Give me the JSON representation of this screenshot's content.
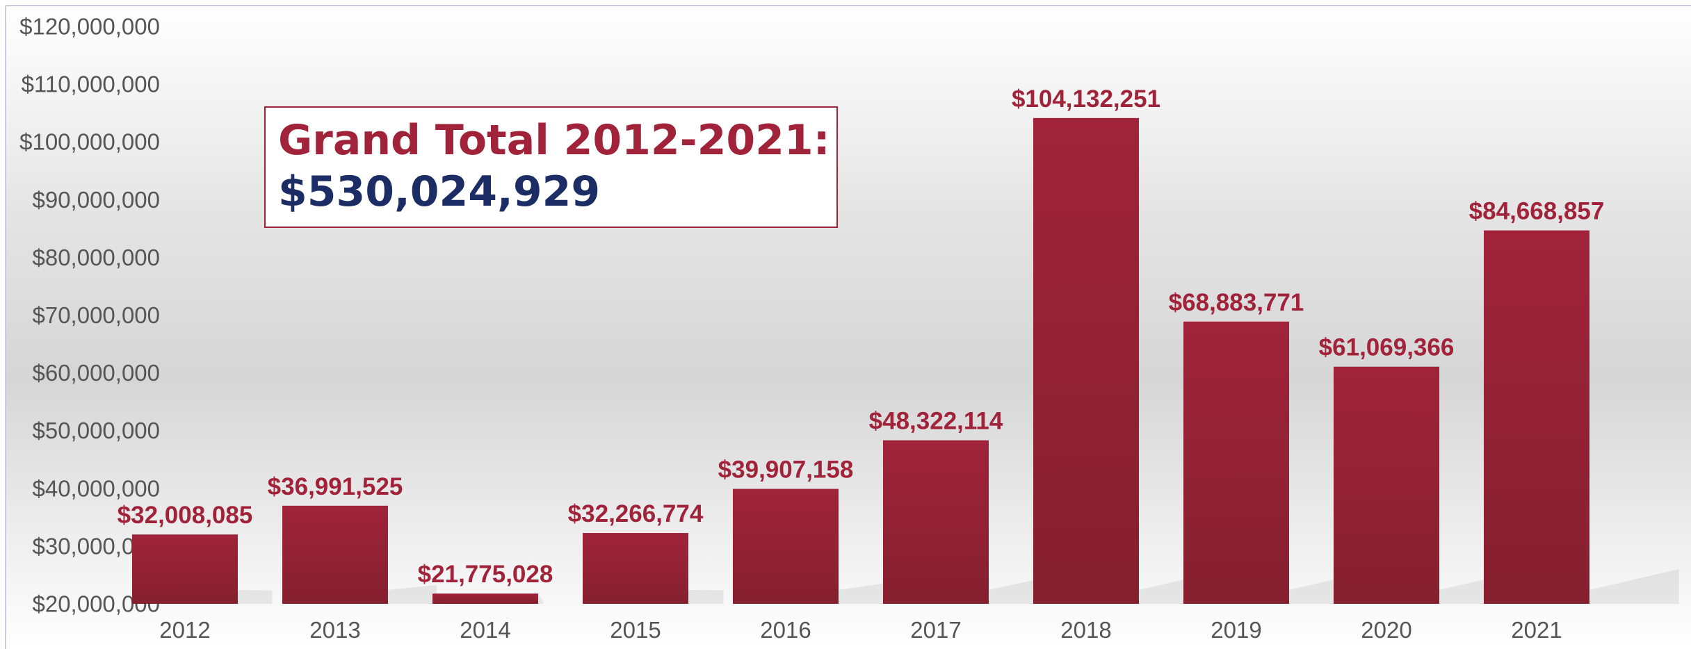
{
  "colors": {
    "bar": "#a0233a",
    "bar_dark": "#85202f",
    "label": "#a0233a",
    "total_label": "#a0233a",
    "total_value": "#1c2d66",
    "tick": "#555555"
  },
  "summary_box": {
    "label": "Grand Total 2012-2021:",
    "value": "$530,024,929"
  },
  "chart_data": {
    "type": "bar",
    "title": "",
    "xlabel": "",
    "ylabel": "",
    "categories": [
      "2012",
      "2013",
      "2014",
      "2015",
      "2016",
      "2017",
      "2018",
      "2019",
      "2020",
      "2021"
    ],
    "values": [
      32008085,
      36991525,
      21775028,
      32266774,
      39907158,
      48322114,
      104132251,
      68883771,
      61069366,
      84668857
    ],
    "data_labels": [
      "$32,008,085",
      "$36,991,525",
      "$21,775,028",
      "$32,266,774",
      "$39,907,158",
      "$48,322,114",
      "$104,132,251",
      "$68,883,771",
      "$61,069,366",
      "$84,668,857"
    ],
    "ylim": [
      20000000,
      120000000
    ],
    "yticks": [
      20000000,
      30000000,
      40000000,
      50000000,
      60000000,
      70000000,
      80000000,
      90000000,
      100000000,
      110000000,
      120000000
    ],
    "ytick_labels": [
      "$20,000,000",
      "$30,000,000",
      "$40,000,000",
      "$50,000,000",
      "$60,000,000",
      "$70,000,000",
      "$80,000,000",
      "$90,000,000",
      "$100,000,000",
      "$110,000,000",
      "$120,000,000"
    ],
    "grid": false,
    "legend": "none"
  }
}
